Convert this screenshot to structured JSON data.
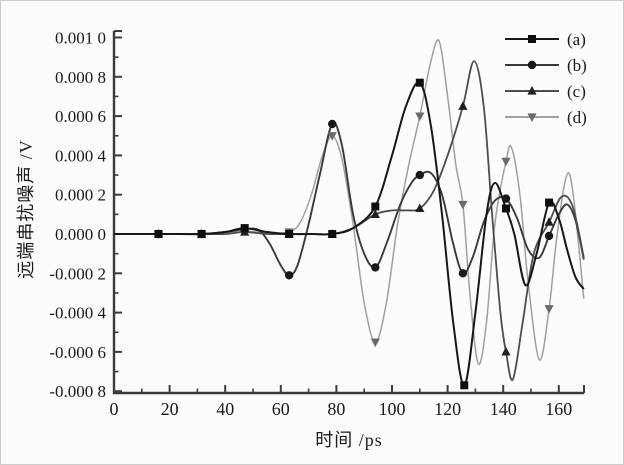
{
  "figure": {
    "background": "#fcfcfc",
    "border_color": "#cccccc",
    "axis_color": "#3b3b3b",
    "text_color": "#1a1a1a"
  },
  "chart_data": {
    "type": "line",
    "title": "",
    "xlabel": "时间 /ps",
    "ylabel": "远端串扰噪声 /V",
    "xlim": [
      0,
      169
    ],
    "ylim": [
      -0.0008,
      0.001
    ],
    "grid": false,
    "legend_position": "top-right",
    "x_ticks": [
      0,
      20,
      40,
      60,
      80,
      100,
      120,
      140,
      160
    ],
    "x_minor_step": 10,
    "y_ticks": [
      0.001,
      0.0008,
      0.0006,
      0.0004,
      0.0002,
      0,
      -0.0002,
      -0.0004,
      -0.0006,
      -0.0008
    ],
    "y_tick_labels": [
      "0.001 0",
      "0.000 8",
      "0.000 6",
      "0.000 4",
      "0.000 2",
      "0.000 0",
      "-0.000 2",
      "-0.000 4",
      "-0.000 6",
      "-0.000 8"
    ],
    "series": [
      {
        "key": "d",
        "name": "(d)",
        "marker": "triangle-down",
        "color": "#a0a0a0",
        "marker_color": "#6a6a6a",
        "line_width": 1.5,
        "points": [
          [
            0,
            0
          ],
          [
            8,
            0
          ],
          [
            16,
            0
          ],
          [
            24,
            0
          ],
          [
            31.5,
            0
          ],
          [
            40,
            5e-06
          ],
          [
            47,
            1.5e-05
          ],
          [
            55,
            5e-06
          ],
          [
            63,
            1e-05
          ],
          [
            67,
            6e-05
          ],
          [
            71,
            0.0002
          ],
          [
            75,
            0.0004
          ],
          [
            78.5,
            0.0005
          ],
          [
            82,
            0.00038
          ],
          [
            86,
            5e-05
          ],
          [
            90,
            -0.00035
          ],
          [
            94,
            -0.00055
          ],
          [
            98,
            -0.00035
          ],
          [
            102,
            5e-05
          ],
          [
            106,
            0.00035
          ],
          [
            110,
            0.0006
          ],
          [
            114,
            0.00088
          ],
          [
            117,
            0.00098
          ],
          [
            120,
            0.0007
          ],
          [
            123,
            0.00035
          ],
          [
            125.5,
            0.00015
          ],
          [
            128,
            -0.0003
          ],
          [
            131,
            -0.00066
          ],
          [
            134,
            -0.00045
          ],
          [
            137,
            5e-05
          ],
          [
            141,
            0.00037
          ],
          [
            143,
            0.00044
          ],
          [
            146,
            0.0002
          ],
          [
            149,
            -0.00025
          ],
          [
            153,
            -0.00064
          ],
          [
            156.5,
            -0.00038
          ],
          [
            159,
            -5e-05
          ],
          [
            162,
            0.00025
          ],
          [
            164,
            0.0003
          ],
          [
            166,
            0.0001
          ],
          [
            169,
            -0.00033
          ]
        ],
        "markers": [
          [
            16,
            0
          ],
          [
            31.5,
            0
          ],
          [
            47,
            1.5e-05
          ],
          [
            63,
            1e-05
          ],
          [
            78.5,
            0.0005
          ],
          [
            94,
            -0.00055
          ],
          [
            110,
            0.0006
          ],
          [
            125.5,
            0.00015
          ],
          [
            141,
            0.00037
          ],
          [
            156.5,
            -0.00038
          ]
        ]
      },
      {
        "key": "b",
        "name": "(b)",
        "marker": "circle",
        "color": "#3a3a3a",
        "marker_color": "#181818",
        "line_width": 1.9,
        "points": [
          [
            0,
            0
          ],
          [
            8,
            0
          ],
          [
            16,
            0
          ],
          [
            24,
            0
          ],
          [
            31.5,
            0
          ],
          [
            40,
            1e-05
          ],
          [
            47,
            2.5e-05
          ],
          [
            52,
            2e-05
          ],
          [
            56,
            -5e-05
          ],
          [
            60,
            -0.00016
          ],
          [
            63,
            -0.00021
          ],
          [
            66,
            -0.00016
          ],
          [
            70,
            5e-05
          ],
          [
            74,
            0.0003
          ],
          [
            78.5,
            0.00056
          ],
          [
            82,
            0.00045
          ],
          [
            86,
            0.0001
          ],
          [
            90,
            -0.0001
          ],
          [
            94,
            -0.00017
          ],
          [
            98,
            -5e-05
          ],
          [
            103,
            0.00015
          ],
          [
            107,
            0.00026
          ],
          [
            110,
            0.0003
          ],
          [
            114,
            0.00031
          ],
          [
            118,
            0.0002
          ],
          [
            122,
            -5e-05
          ],
          [
            125.5,
            -0.0002
          ],
          [
            129,
            -0.00012
          ],
          [
            133,
            6e-05
          ],
          [
            137,
            0.00017
          ],
          [
            141,
            0.00018
          ],
          [
            145,
            8e-05
          ],
          [
            149,
            -8e-05
          ],
          [
            153,
            -0.00012
          ],
          [
            156.5,
            -1e-05
          ],
          [
            160,
            0.0001
          ],
          [
            163,
            0.00015
          ],
          [
            166,
            7e-05
          ],
          [
            169,
            -0.00013
          ]
        ],
        "markers": [
          [
            16,
            0
          ],
          [
            31.5,
            0
          ],
          [
            47,
            2.5e-05
          ],
          [
            63,
            -0.00021
          ],
          [
            78.5,
            0.00056
          ],
          [
            94,
            -0.00017
          ],
          [
            110,
            0.0003
          ],
          [
            125.5,
            -0.0002
          ],
          [
            141,
            0.00018
          ],
          [
            156.5,
            -1e-05
          ]
        ]
      },
      {
        "key": "c",
        "name": "(c)",
        "marker": "triangle-up",
        "color": "#4d4d4d",
        "marker_color": "#1f1f1f",
        "line_width": 1.8,
        "points": [
          [
            0,
            0
          ],
          [
            8,
            0
          ],
          [
            16,
            0
          ],
          [
            24,
            0
          ],
          [
            31.5,
            0
          ],
          [
            40,
            0
          ],
          [
            47,
            1e-05
          ],
          [
            55,
            0
          ],
          [
            63,
            0
          ],
          [
            71,
            0
          ],
          [
            78.5,
            0
          ],
          [
            86,
            3e-05
          ],
          [
            94,
            0.0001
          ],
          [
            100,
            0.00012
          ],
          [
            105,
            0.00012
          ],
          [
            110,
            0.00013
          ],
          [
            115,
            0.00022
          ],
          [
            120,
            0.0004
          ],
          [
            125.5,
            0.00065
          ],
          [
            129.5,
            0.00088
          ],
          [
            133,
            0.00065
          ],
          [
            136,
            0.0001
          ],
          [
            139,
            -0.0004
          ],
          [
            141,
            -0.0006
          ],
          [
            143.5,
            -0.00074
          ],
          [
            147,
            -0.00045
          ],
          [
            151,
            -0.0001
          ],
          [
            156.5,
            6e-05
          ],
          [
            161,
            0.00019
          ],
          [
            165,
            0.00014
          ],
          [
            169,
            -0.00012
          ]
        ],
        "markers": [
          [
            16,
            0
          ],
          [
            31.5,
            0
          ],
          [
            47,
            1e-05
          ],
          [
            63,
            0
          ],
          [
            78.5,
            0
          ],
          [
            94,
            0.0001
          ],
          [
            110,
            0.00013
          ],
          [
            125.5,
            0.00065
          ],
          [
            141,
            -0.0006
          ],
          [
            156.5,
            6e-05
          ]
        ]
      },
      {
        "key": "a",
        "name": "(a)",
        "marker": "square",
        "color": "#161616",
        "marker_color": "#0d0d0d",
        "line_width": 2.0,
        "points": [
          [
            0,
            0
          ],
          [
            8,
            0
          ],
          [
            16,
            0
          ],
          [
            24,
            0
          ],
          [
            31.5,
            0
          ],
          [
            40,
            1e-05
          ],
          [
            47,
            3e-05
          ],
          [
            55,
            1e-05
          ],
          [
            63,
            0
          ],
          [
            71,
            0
          ],
          [
            78.5,
            0
          ],
          [
            86,
            3e-05
          ],
          [
            94,
            0.00014
          ],
          [
            100,
            0.0004
          ],
          [
            105,
            0.00065
          ],
          [
            110,
            0.00077
          ],
          [
            114,
            0.00055
          ],
          [
            118,
            0.0001
          ],
          [
            122,
            -0.00045
          ],
          [
            126,
            -0.00077
          ],
          [
            130,
            -0.0004
          ],
          [
            134,
            0.0001
          ],
          [
            137,
            0.00026
          ],
          [
            141,
            0.00013
          ],
          [
            144,
            0
          ],
          [
            148,
            -0.00026
          ],
          [
            152,
            -0.0001
          ],
          [
            156.5,
            0.00016
          ],
          [
            160,
            8e-05
          ],
          [
            163,
            -8e-05
          ],
          [
            166,
            -0.00022
          ],
          [
            169,
            -0.00028
          ]
        ],
        "markers": [
          [
            16,
            0
          ],
          [
            31.5,
            0
          ],
          [
            47,
            3e-05
          ],
          [
            63,
            0
          ],
          [
            78.5,
            0
          ],
          [
            94,
            0.00014
          ],
          [
            110,
            0.00077
          ],
          [
            126,
            -0.00077
          ],
          [
            141,
            0.00013
          ],
          [
            156.5,
            0.00016
          ]
        ]
      }
    ]
  }
}
